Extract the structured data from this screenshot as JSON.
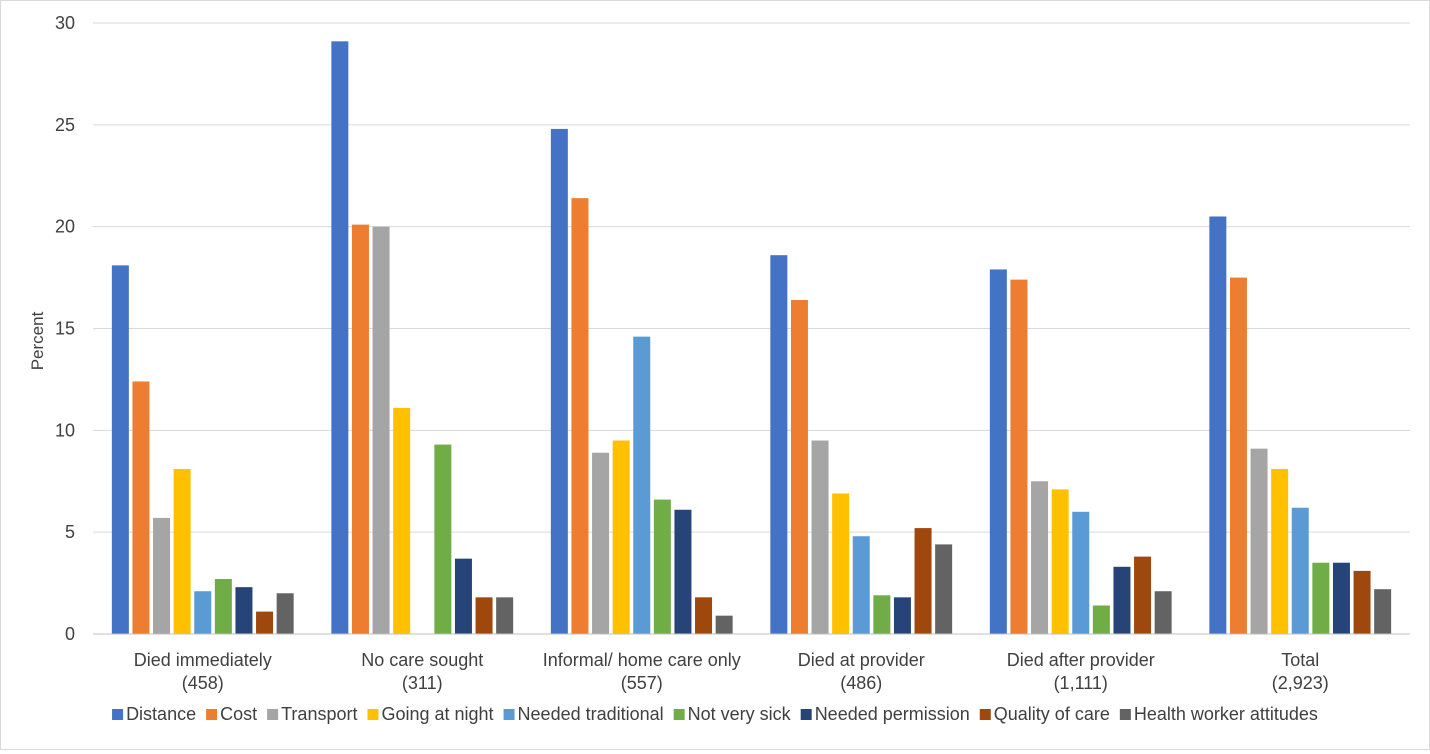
{
  "chart_data": {
    "type": "bar",
    "ylabel": "Percent",
    "xlabel": "",
    "ylim": [
      0,
      30
    ],
    "yticks": [
      0,
      5,
      10,
      15,
      20,
      25,
      30
    ],
    "grid": true,
    "legend_position": "bottom",
    "categories": [
      {
        "name": "Died immediately",
        "n": "(458)"
      },
      {
        "name": "No care sought",
        "n": "(311)"
      },
      {
        "name": "Informal/ home care only",
        "n": "(557)"
      },
      {
        "name": "Died at provider",
        "n": "(486)"
      },
      {
        "name": "Died after provider",
        "n": "(1,111)"
      },
      {
        "name": "Total",
        "n": "(2,923)"
      }
    ],
    "series": [
      {
        "name": "Distance",
        "color": "#4472c4",
        "values": [
          18.1,
          29.1,
          24.8,
          18.6,
          17.9,
          20.5
        ]
      },
      {
        "name": "Cost",
        "color": "#ed7d31",
        "values": [
          12.4,
          20.1,
          21.4,
          16.4,
          17.4,
          17.5
        ]
      },
      {
        "name": "Transport",
        "color": "#a5a5a5",
        "values": [
          5.7,
          20.0,
          8.9,
          9.5,
          7.5,
          9.1
        ]
      },
      {
        "name": "Going at night",
        "color": "#ffc000",
        "values": [
          8.1,
          11.1,
          9.5,
          6.9,
          7.1,
          8.1
        ]
      },
      {
        "name": "Needed traditional",
        "color": "#5b9bd5",
        "values": [
          2.1,
          0,
          14.6,
          4.8,
          6.0,
          6.2
        ]
      },
      {
        "name": "Not very sick",
        "color": "#70ad47",
        "values": [
          2.7,
          9.3,
          6.6,
          1.9,
          1.4,
          3.5
        ]
      },
      {
        "name": "Needed permission",
        "color": "#264478",
        "values": [
          2.3,
          3.7,
          6.1,
          1.8,
          3.3,
          3.5
        ]
      },
      {
        "name": "Quality of care",
        "color": "#9e480e",
        "values": [
          1.1,
          1.8,
          1.8,
          5.2,
          3.8,
          3.1
        ]
      },
      {
        "name": "Health worker attitudes",
        "color": "#636363",
        "values": [
          2.0,
          1.8,
          0.9,
          4.4,
          2.1,
          2.2
        ]
      }
    ]
  }
}
